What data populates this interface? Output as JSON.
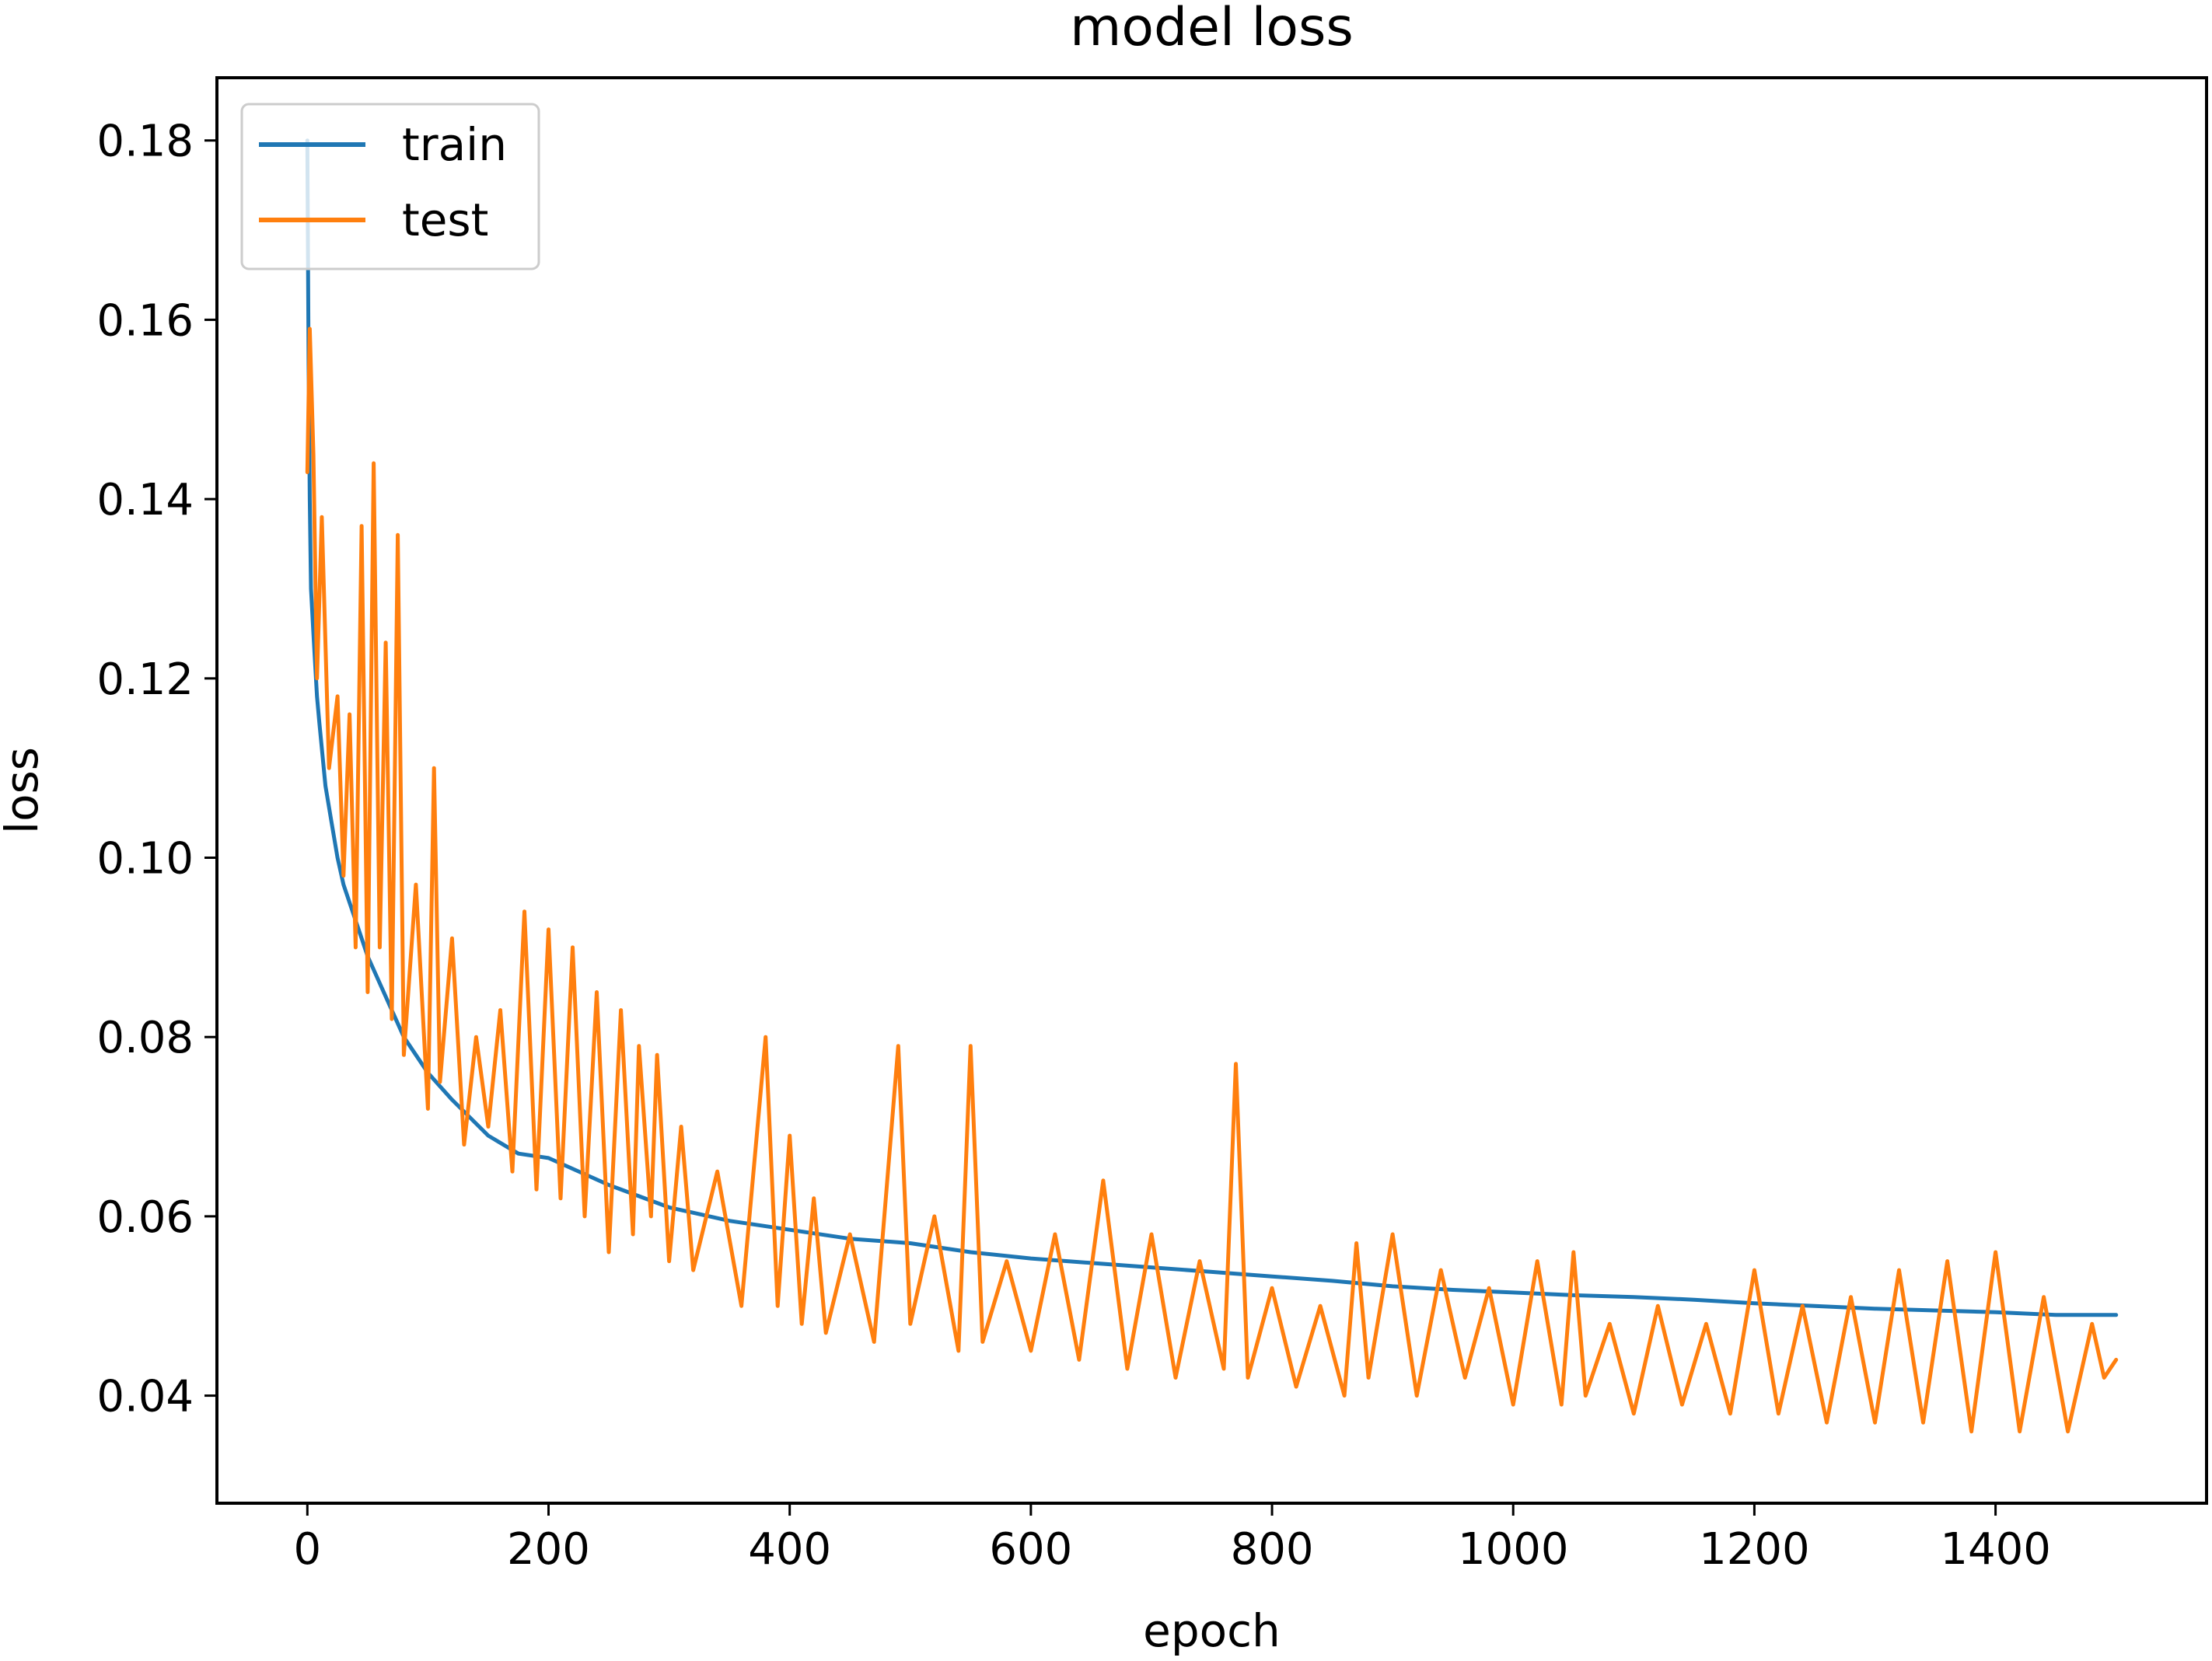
{
  "chart_data": {
    "type": "line",
    "title": "model loss",
    "xlabel": "epoch",
    "ylabel": "loss",
    "xlim": [
      -75,
      1575
    ],
    "ylim": [
      0.028,
      0.187
    ],
    "xticks": [
      0,
      200,
      400,
      600,
      800,
      1000,
      1200,
      1400
    ],
    "xtick_labels": [
      "0",
      "200",
      "400",
      "600",
      "800",
      "1000",
      "1200",
      "1400"
    ],
    "yticks": [
      0.04,
      0.06,
      0.08,
      0.1,
      0.12,
      0.14,
      0.16,
      0.18
    ],
    "ytick_labels": [
      "0.04",
      "0.06",
      "0.08",
      "0.10",
      "0.12",
      "0.14",
      "0.16",
      "0.18"
    ],
    "grid": false,
    "legend": {
      "position": "upper left",
      "entries": [
        {
          "label": "train",
          "color": "#1f77b4"
        },
        {
          "label": "test",
          "color": "#ff7f0e"
        }
      ]
    },
    "series": [
      {
        "name": "train",
        "color": "#1f77b4",
        "x": [
          0,
          1,
          2,
          3,
          5,
          8,
          10,
          15,
          20,
          25,
          30,
          40,
          50,
          60,
          70,
          80,
          100,
          120,
          150,
          175,
          200,
          250,
          300,
          350,
          400,
          450,
          500,
          550,
          600,
          650,
          700,
          750,
          800,
          850,
          900,
          950,
          1000,
          1050,
          1100,
          1150,
          1200,
          1250,
          1300,
          1350,
          1400,
          1450,
          1500
        ],
        "y": [
          0.18,
          0.155,
          0.14,
          0.13,
          0.125,
          0.118,
          0.115,
          0.108,
          0.104,
          0.1,
          0.097,
          0.093,
          0.089,
          0.086,
          0.083,
          0.08,
          0.076,
          0.073,
          0.069,
          0.067,
          0.0665,
          0.0635,
          0.061,
          0.0595,
          0.0585,
          0.0575,
          0.057,
          0.056,
          0.0553,
          0.0548,
          0.0543,
          0.0538,
          0.0533,
          0.0528,
          0.0522,
          0.0518,
          0.0515,
          0.0512,
          0.051,
          0.0507,
          0.0503,
          0.05,
          0.0497,
          0.0495,
          0.0493,
          0.049,
          0.049
        ]
      },
      {
        "name": "test",
        "color": "#ff7f0e",
        "x": [
          0,
          2,
          5,
          8,
          12,
          18,
          25,
          30,
          35,
          40,
          45,
          50,
          55,
          60,
          65,
          70,
          75,
          80,
          90,
          100,
          105,
          110,
          120,
          130,
          140,
          150,
          160,
          170,
          180,
          190,
          200,
          210,
          220,
          230,
          240,
          250,
          260,
          270,
          275,
          285,
          290,
          300,
          310,
          320,
          340,
          360,
          380,
          390,
          400,
          410,
          420,
          430,
          450,
          470,
          490,
          500,
          520,
          540,
          550,
          560,
          580,
          600,
          620,
          640,
          660,
          680,
          700,
          720,
          740,
          760,
          770,
          780,
          800,
          820,
          840,
          860,
          870,
          880,
          900,
          920,
          940,
          960,
          980,
          1000,
          1020,
          1040,
          1050,
          1060,
          1080,
          1100,
          1120,
          1140,
          1160,
          1180,
          1200,
          1220,
          1240,
          1260,
          1280,
          1300,
          1320,
          1340,
          1360,
          1380,
          1400,
          1420,
          1440,
          1460,
          1480,
          1490,
          1500
        ],
        "y": [
          0.143,
          0.159,
          0.145,
          0.12,
          0.138,
          0.11,
          0.118,
          0.098,
          0.116,
          0.09,
          0.137,
          0.085,
          0.144,
          0.09,
          0.124,
          0.082,
          0.136,
          0.078,
          0.097,
          0.072,
          0.11,
          0.075,
          0.091,
          0.068,
          0.08,
          0.07,
          0.083,
          0.065,
          0.094,
          0.063,
          0.092,
          0.062,
          0.09,
          0.06,
          0.085,
          0.056,
          0.083,
          0.058,
          0.079,
          0.06,
          0.078,
          0.055,
          0.07,
          0.054,
          0.065,
          0.05,
          0.08,
          0.05,
          0.069,
          0.048,
          0.062,
          0.047,
          0.058,
          0.046,
          0.079,
          0.048,
          0.06,
          0.045,
          0.079,
          0.046,
          0.055,
          0.045,
          0.058,
          0.044,
          0.064,
          0.043,
          0.058,
          0.042,
          0.055,
          0.043,
          0.077,
          0.042,
          0.052,
          0.041,
          0.05,
          0.04,
          0.057,
          0.042,
          0.058,
          0.04,
          0.054,
          0.042,
          0.052,
          0.039,
          0.055,
          0.039,
          0.056,
          0.04,
          0.048,
          0.038,
          0.05,
          0.039,
          0.048,
          0.038,
          0.054,
          0.038,
          0.05,
          0.037,
          0.051,
          0.037,
          0.054,
          0.037,
          0.055,
          0.036,
          0.056,
          0.036,
          0.051,
          0.036,
          0.048,
          0.042,
          0.044
        ]
      }
    ]
  }
}
